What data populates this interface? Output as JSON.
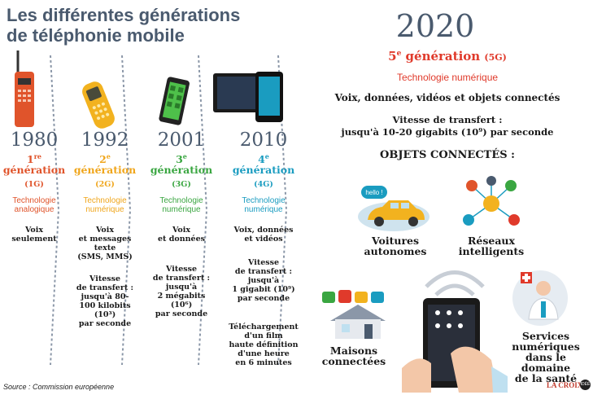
{
  "title": [
    "Les différentes générations",
    "de téléphonie mobile"
  ],
  "columns": [
    {
      "year": "1980",
      "gen_num": "1",
      "gen_sup": "re",
      "gen_word": "génération",
      "code": "(1G)",
      "tech": [
        "Technologie",
        "analogique"
      ],
      "uses": [
        "Voix",
        "seulement"
      ],
      "speed": [],
      "extra": [],
      "color": "#e0542b"
    },
    {
      "year": "1992",
      "gen_num": "2",
      "gen_sup": "e",
      "gen_word": "génération",
      "code": "(2G)",
      "tech": [
        "Technologie",
        "numérique"
      ],
      "uses": [
        "Voix",
        "et messages",
        "texte",
        "(SMS, MMS)"
      ],
      "speed": [
        "Vitesse",
        "de transfert :",
        "jusqu'à 80-",
        "100 kilobits (10³)",
        "par seconde"
      ],
      "extra": [],
      "color": "#f0a61c"
    },
    {
      "year": "2001",
      "gen_num": "3",
      "gen_sup": "e",
      "gen_word": "génération",
      "code": "(3G)",
      "tech": [
        "Technologie",
        "numérique"
      ],
      "uses": [
        "Voix",
        "et données"
      ],
      "speed": [
        "Vitesse",
        "de transfert :",
        "jusqu'à",
        "2 mégabits (10⁶)",
        "par seconde"
      ],
      "extra": [],
      "color": "#3aa641"
    },
    {
      "year": "2010",
      "gen_num": "4",
      "gen_sup": "e",
      "gen_word": "génération",
      "code": "(4G)",
      "tech": [
        "Technologie",
        "numérique"
      ],
      "uses": [
        "Voix, données",
        "et vidéos"
      ],
      "speed": [
        "Vitesse",
        "de transfert :",
        "jusqu'à",
        "1 gigabit (10⁹)",
        "par seconde"
      ],
      "extra": [
        "Téléchargement",
        "d'un film",
        "haute définition",
        "d'une heure",
        "en 6 minutes"
      ],
      "color": "#1a9cc0"
    }
  ],
  "fiveg": {
    "year": "2020",
    "gen_num": "5",
    "gen_sup": "e",
    "gen_word": "génération",
    "code": "(5G)",
    "tech": "Technologie numérique",
    "uses": "Voix, données, vidéos et objets connectés",
    "speed": [
      "Vitesse de transfert :",
      "jusqu'à 10-20 gigabits (10⁹) par seconde"
    ],
    "heading": "OBJETS CONNECTÉS :",
    "color": "#e03a2b"
  },
  "objects": {
    "cars": [
      "Voitures",
      "autonomes"
    ],
    "cars_bubble": "hello !",
    "networks": [
      "Réseaux",
      "intelligents"
    ],
    "homes": [
      "Maisons",
      "connectées"
    ],
    "health": [
      "Services",
      "numériques",
      "dans le domaine",
      "de la santé"
    ]
  },
  "source": "Source : Commission européenne",
  "logo": "LA CROIX",
  "logo_badge": "IDÉÉ"
}
